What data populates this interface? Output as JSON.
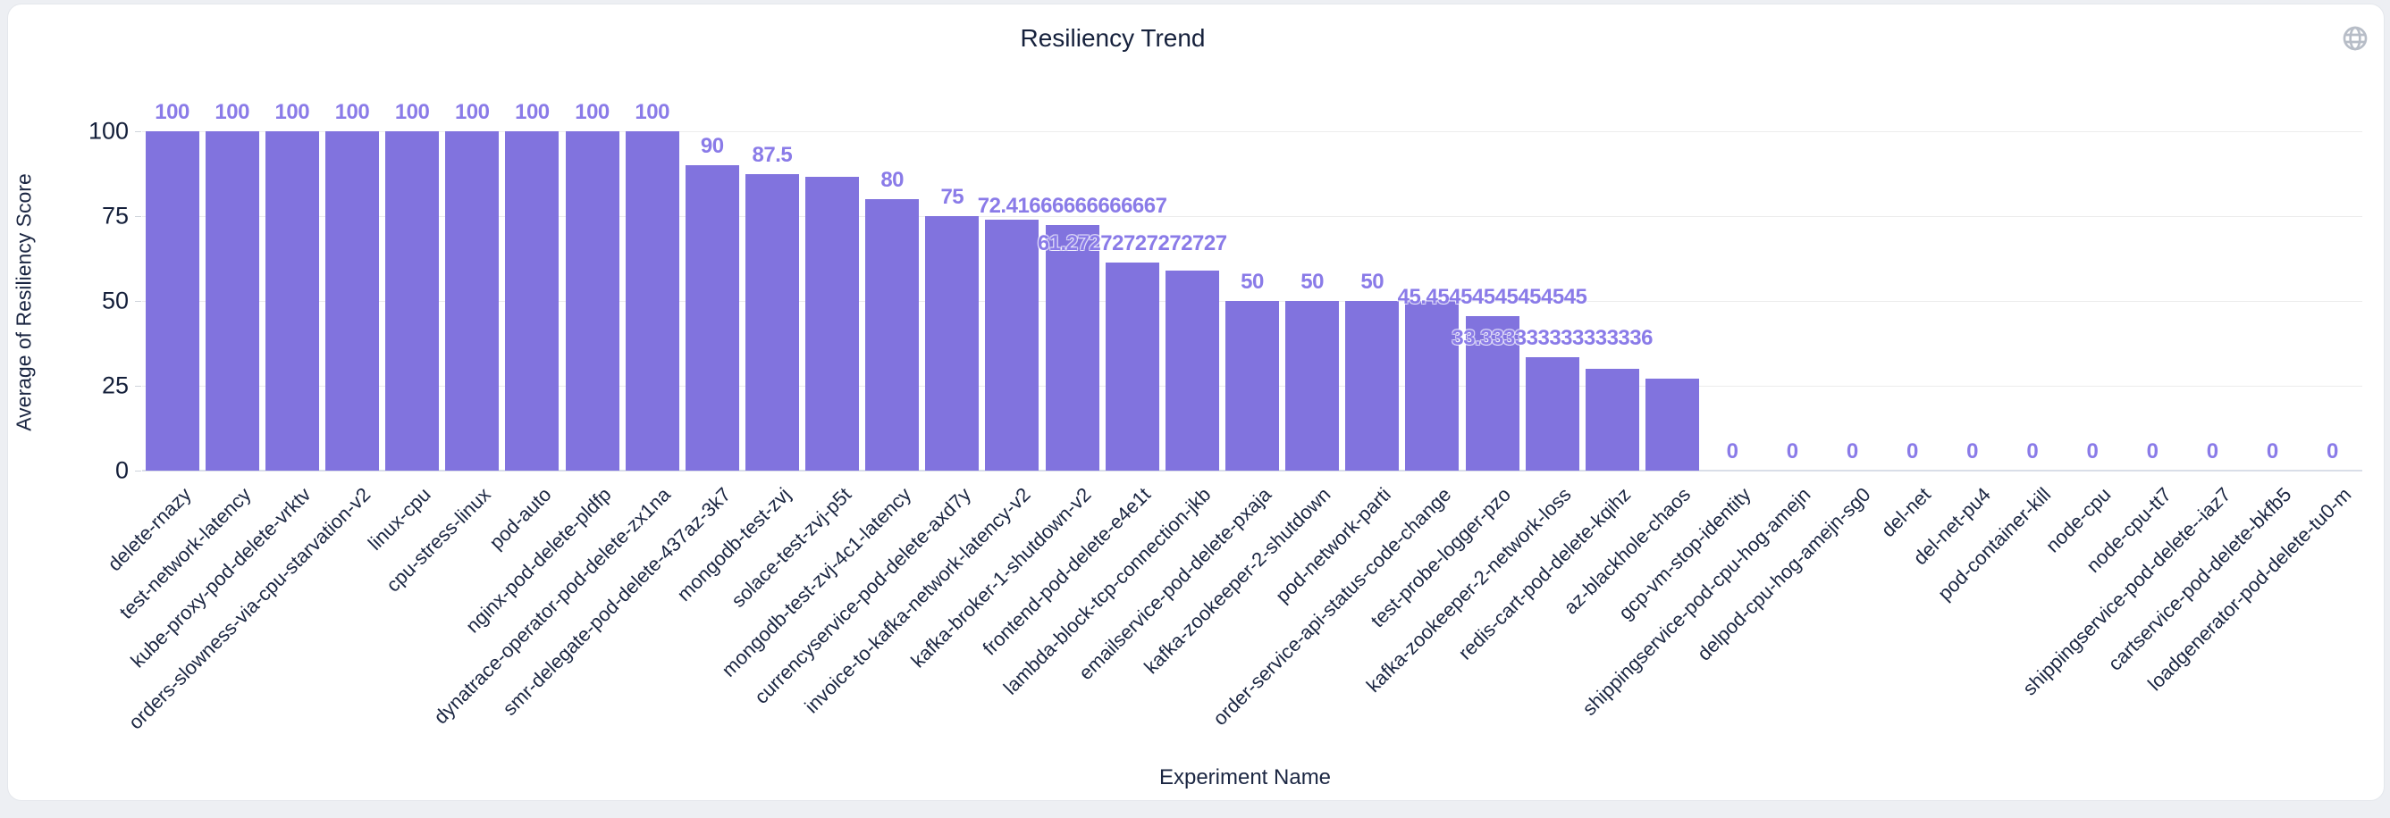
{
  "header": {
    "title": "Resiliency Trend",
    "globe_icon": "globe"
  },
  "chart_data": {
    "type": "bar",
    "title": "Resiliency Trend",
    "xlabel": "Experiment Name",
    "ylabel": "Average of Resiliency Score",
    "ylim": [
      0,
      100
    ],
    "yticks": [
      0,
      25,
      50,
      75,
      100
    ],
    "grid": true,
    "legend": "none",
    "bar_color": "#8173de",
    "value_label_color": "#8a7be8",
    "axis_text_color": "#1b2642",
    "categories": [
      "delete-rnazy",
      "test-network-latency",
      "kube-proxy-pod-delete-vrktv",
      "orders-slowness-via-cpu-starvation-v2",
      "linux-cpu",
      "cpu-stress-linux",
      "pod-auto",
      "nginx-pod-delete-pldfp",
      "dynatrace-operator-pod-delete-zx1na",
      "smr-delegate-pod-delete-437az-3k7",
      "mongodb-test-zvj",
      "solace-test-zvj-p5t",
      "mongodb-test-zvj-4c1-latency",
      "currencyservice-pod-delete-axd7y",
      "invoice-to-kafka-network-latency-v2",
      "kafka-broker-1-shutdown-v2",
      "frontend-pod-delete-e4e1t",
      "lambda-block-tcp-connection-jkb",
      "emailservice-pod-delete-pxaja",
      "kafka-zookeeper-2-shutdown",
      "pod-network-parti",
      "order-service-api-status-code-change",
      "test-probe-logger-pzo",
      "kafka-zookeeper-2-network-loss",
      "redis-cart-pod-delete-kqihz",
      "az-blackhole-chaos",
      "gcp-vm-stop-identity",
      "shippingservice-pod-cpu-hog-amejn",
      "delpod-cpu-hog-amejn-sg0",
      "del-net",
      "del-net-pu4",
      "pod-container-kill",
      "node-cpu",
      "node-cpu-tt7",
      "shippingservice-pod-delete--iaz7",
      "cartservice-pod-delete-bkfb5",
      "loadgenerator-pod-delete-tu0-m"
    ],
    "values": [
      100,
      100,
      100,
      100,
      100,
      100,
      100,
      100,
      100,
      90,
      87.5,
      86.6,
      80,
      75,
      74,
      72.41666666666667,
      61.27272727272727,
      59,
      50,
      50,
      50,
      50,
      45.45454545454545,
      33.333333333333336,
      30,
      27,
      0,
      0,
      0,
      0,
      0,
      0,
      0,
      0,
      0,
      0,
      0
    ],
    "bar_labels": [
      "100",
      "100",
      "100",
      "100",
      "100",
      "100",
      "100",
      "100",
      "100",
      "90",
      "87.5",
      "",
      "80",
      "75",
      "",
      "72.41666666666667",
      "61.27272727272727",
      "",
      "50",
      "50",
      "50",
      "",
      "45.45454545454545",
      "33.333333333333336",
      "",
      "",
      "0",
      "0",
      "0",
      "0",
      "0",
      "0",
      "0",
      "0",
      "0",
      "0",
      "0"
    ]
  }
}
